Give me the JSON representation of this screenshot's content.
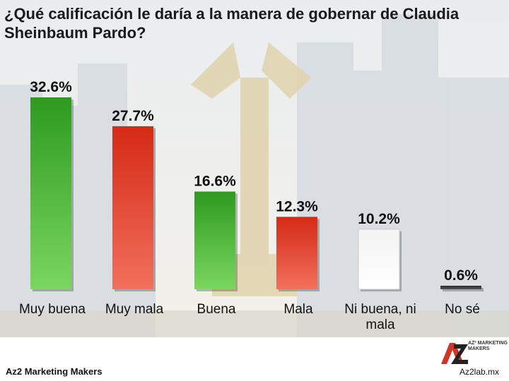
{
  "title": "¿Qué calificación le daría a la manera de gobernar de Claudia Sheinbaum Pardo?",
  "footer": {
    "brand": "Az2 Marketing Makers",
    "site": "Az2lab.mx",
    "logo_text": "AZ² MARKETING MAKERS"
  },
  "colors": {
    "green": "#3aa52a",
    "red": "#e23320",
    "white": "#ffffff",
    "dark": "#333333"
  },
  "chart_data": {
    "type": "bar",
    "categories": [
      "Muy buena",
      "Muy mala",
      "Buena",
      "Mala",
      "Ni buena, ni mala",
      "No sé"
    ],
    "values": [
      32.6,
      27.7,
      16.6,
      12.3,
      10.2,
      0.6
    ],
    "labels": [
      "32.6%",
      "27.7%",
      "16.6%",
      "12.3%",
      "10.2%",
      "0.6%"
    ],
    "colors": [
      "green",
      "red",
      "green",
      "red",
      "white",
      "dark"
    ],
    "ylim": [
      0,
      35
    ],
    "grid": false,
    "legend": "none"
  }
}
